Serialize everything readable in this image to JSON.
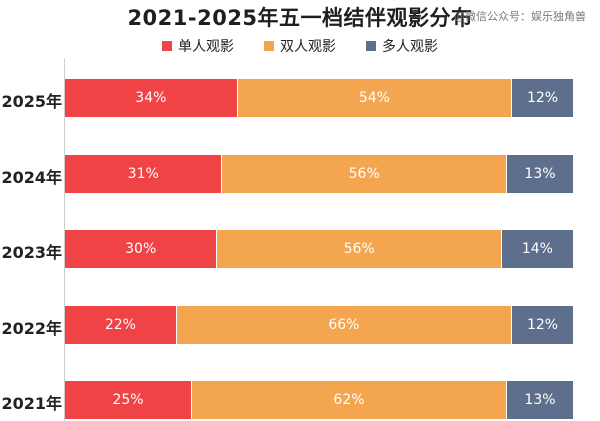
{
  "title": "2021-2025年五一档结伴观影分布",
  "watermark": "@微信公众号：娱乐独角兽",
  "colors": {
    "solo": "#ef4346",
    "couple": "#f4a550",
    "group": "#5e6f8e"
  },
  "chart_data": {
    "type": "bar",
    "orientation": "horizontal",
    "stacked": true,
    "title": "2021-2025年五一档结伴观影分布",
    "legend_position": "top-center",
    "categories": [
      "2025年",
      "2024年",
      "2023年",
      "2022年",
      "2021年"
    ],
    "series": [
      {
        "name": "单人观影",
        "values": [
          34,
          31,
          30,
          22,
          25
        ],
        "labels": [
          "34%",
          "31%",
          "30%",
          "22%",
          "25%"
        ]
      },
      {
        "name": "双人观影",
        "values": [
          54,
          56,
          56,
          66,
          62
        ],
        "labels": [
          "54%",
          "56%",
          "56%",
          "66%",
          "62%"
        ]
      },
      {
        "name": "多人观影",
        "values": [
          12,
          13,
          14,
          12,
          13
        ],
        "labels": [
          "12%",
          "13%",
          "14%",
          "12%",
          "13%"
        ]
      }
    ]
  }
}
